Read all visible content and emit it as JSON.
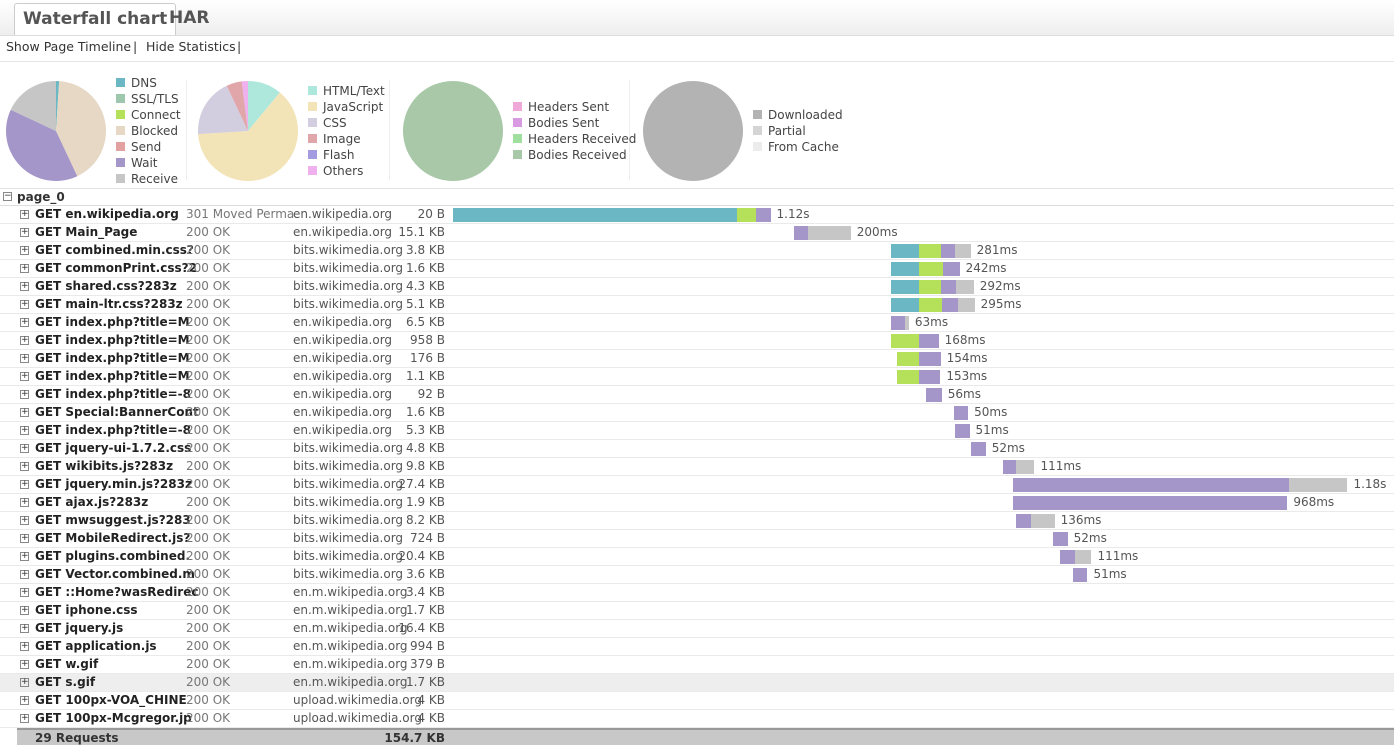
{
  "tabs": [
    "Waterfall chart",
    "HAR"
  ],
  "toolbar": {
    "links": [
      "Show Page Timeline",
      "Hide Statistics"
    ],
    "separator": "|"
  },
  "pies": [
    {
      "items": [
        {
          "label": "DNS",
          "value": 1,
          "color": "#6bb8c4"
        },
        {
          "label": "SSL/TLS",
          "value": 0,
          "color": "#9fc7ad"
        },
        {
          "label": "Connect",
          "value": 0,
          "color": "#b4e05a"
        },
        {
          "label": "Blocked",
          "value": 42,
          "color": "#e6d8c4"
        },
        {
          "label": "Send",
          "value": 0,
          "color": "#e3a1a1"
        },
        {
          "label": "Wait",
          "value": 39,
          "color": "#a496c8"
        },
        {
          "label": "Receive",
          "value": 18,
          "color": "#c6c6c6"
        }
      ]
    },
    {
      "items": [
        {
          "label": "HTML/Text",
          "value": 11,
          "color": "#aee8dc"
        },
        {
          "label": "JavaScript",
          "value": 63,
          "color": "#f3e4b8"
        },
        {
          "label": "CSS",
          "value": 19,
          "color": "#d3cde0"
        },
        {
          "label": "Image",
          "value": 5,
          "color": "#e0a6aa"
        },
        {
          "label": "Flash",
          "value": 0,
          "color": "#a39ce0"
        },
        {
          "label": "Others",
          "value": 2,
          "color": "#eeb1ee"
        }
      ]
    },
    {
      "items": [
        {
          "label": "Headers Sent",
          "value": 0,
          "color": "#f0a8d8"
        },
        {
          "label": "Bodies Sent",
          "value": 0,
          "color": "#d89ae0"
        },
        {
          "label": "Headers Received",
          "value": 0,
          "color": "#9fe09f"
        },
        {
          "label": "Bodies Received",
          "value": 100,
          "color": "#a8c8a8"
        }
      ]
    },
    {
      "items": [
        {
          "label": "Downloaded",
          "value": 100,
          "color": "#b3b3b3"
        },
        {
          "label": "Partial",
          "value": 0,
          "color": "#d4d4d4"
        },
        {
          "label": "From Cache",
          "value": 0,
          "color": "#ececec"
        }
      ]
    }
  ],
  "page": "page_0",
  "rows": [
    {
      "request": "GET en.wikipedia.org",
      "status": "301 Moved Perma",
      "domain": "en.wikipedia.org",
      "size": "20 B",
      "start": 0,
      "timings": [
        1000,
        0,
        70,
        0,
        0,
        50,
        0
      ],
      "time": "1.12s"
    },
    {
      "request": "GET Main_Page",
      "status": "200 OK",
      "domain": "en.wikipedia.org",
      "size": "15.1 KB",
      "start": 1203,
      "timings": [
        0,
        0,
        0,
        0,
        0,
        50,
        150
      ],
      "time": "200ms"
    },
    {
      "request": "GET combined.min.css?",
      "status": "200 OK",
      "domain": "bits.wikimedia.org",
      "size": "3.8 KB",
      "start": 1545,
      "timings": [
        100,
        0,
        75,
        0,
        0,
        50,
        56
      ],
      "time": "281ms"
    },
    {
      "request": "GET commonPrint.css?2",
      "status": "200 OK",
      "domain": "bits.wikimedia.org",
      "size": "1.6 KB",
      "start": 1545,
      "timings": [
        100,
        0,
        85,
        0,
        0,
        57,
        0
      ],
      "time": "242ms"
    },
    {
      "request": "GET shared.css?283z",
      "status": "200 OK",
      "domain": "bits.wikimedia.org",
      "size": "4.3 KB",
      "start": 1545,
      "timings": [
        100,
        0,
        75,
        0,
        0,
        55,
        62
      ],
      "time": "292ms"
    },
    {
      "request": "GET main-ltr.css?283z",
      "status": "200 OK",
      "domain": "bits.wikimedia.org",
      "size": "5.1 KB",
      "start": 1545,
      "timings": [
        100,
        0,
        80,
        0,
        0,
        55,
        60
      ],
      "time": "295ms"
    },
    {
      "request": "GET index.php?title=M",
      "status": "200 OK",
      "domain": "en.wikipedia.org",
      "size": "6.5 KB",
      "start": 1545,
      "timings": [
        0,
        0,
        0,
        0,
        0,
        50,
        13
      ],
      "time": "63ms"
    },
    {
      "request": "GET index.php?title=M",
      "status": "200 OK",
      "domain": "en.wikipedia.org",
      "size": "958 B",
      "start": 1545,
      "timings": [
        0,
        0,
        98,
        0,
        0,
        70,
        0
      ],
      "time": "168ms"
    },
    {
      "request": "GET index.php?title=M",
      "status": "200 OK",
      "domain": "en.wikipedia.org",
      "size": "176 B",
      "start": 1566,
      "timings": [
        0,
        0,
        78,
        0,
        0,
        76,
        0
      ],
      "time": "154ms"
    },
    {
      "request": "GET index.php?title=M",
      "status": "200 OK",
      "domain": "en.wikipedia.org",
      "size": "1.1 KB",
      "start": 1566,
      "timings": [
        0,
        0,
        77,
        0,
        0,
        76,
        0
      ],
      "time": "153ms"
    },
    {
      "request": "GET index.php?title=-8",
      "status": "200 OK",
      "domain": "en.wikipedia.org",
      "size": "92 B",
      "start": 1668,
      "timings": [
        0,
        0,
        0,
        0,
        0,
        56,
        0
      ],
      "time": "56ms"
    },
    {
      "request": "GET Special:BannerCont",
      "status": "200 OK",
      "domain": "en.wikipedia.org",
      "size": "1.6 KB",
      "start": 1767,
      "timings": [
        0,
        0,
        0,
        0,
        0,
        50,
        0
      ],
      "time": "50ms"
    },
    {
      "request": "GET index.php?title=-8",
      "status": "200 OK",
      "domain": "en.wikipedia.org",
      "size": "5.3 KB",
      "start": 1771,
      "timings": [
        0,
        0,
        0,
        0,
        0,
        51,
        0
      ],
      "time": "51ms"
    },
    {
      "request": "GET jquery-ui-1.7.2.css",
      "status": "200 OK",
      "domain": "bits.wikimedia.org",
      "size": "4.8 KB",
      "start": 1827,
      "timings": [
        0,
        0,
        0,
        0,
        0,
        52,
        0
      ],
      "time": "52ms"
    },
    {
      "request": "GET wikibits.js?283z",
      "status": "200 OK",
      "domain": "bits.wikimedia.org",
      "size": "9.8 KB",
      "start": 1940,
      "timings": [
        0,
        0,
        0,
        0,
        0,
        46,
        65
      ],
      "time": "111ms"
    },
    {
      "request": "GET jquery.min.js?283z",
      "status": "200 OK",
      "domain": "bits.wikimedia.org",
      "size": "27.4 KB",
      "start": 1975,
      "timings": [
        0,
        0,
        0,
        0,
        0,
        973,
        207
      ],
      "time": "1.18s"
    },
    {
      "request": "GET ajax.js?283z",
      "status": "200 OK",
      "domain": "bits.wikimedia.org",
      "size": "1.9 KB",
      "start": 1975,
      "timings": [
        0,
        0,
        0,
        0,
        0,
        968,
        0
      ],
      "time": "968ms"
    },
    {
      "request": "GET mwsuggest.js?283",
      "status": "200 OK",
      "domain": "bits.wikimedia.org",
      "size": "8.2 KB",
      "start": 1986,
      "timings": [
        0,
        0,
        0,
        0,
        0,
        53,
        83
      ],
      "time": "136ms"
    },
    {
      "request": "GET MobileRedirect.js?",
      "status": "200 OK",
      "domain": "bits.wikimedia.org",
      "size": "724 B",
      "start": 2116,
      "timings": [
        0,
        0,
        0,
        0,
        0,
        52,
        0
      ],
      "time": "52ms"
    },
    {
      "request": "GET plugins.combined.",
      "status": "200 OK",
      "domain": "bits.wikimedia.org",
      "size": "20.4 KB",
      "start": 2141,
      "timings": [
        0,
        0,
        0,
        0,
        0,
        53,
        58
      ],
      "time": "111ms"
    },
    {
      "request": "GET Vector.combined.m",
      "status": "200 OK",
      "domain": "bits.wikimedia.org",
      "size": "3.6 KB",
      "start": 2187,
      "timings": [
        0,
        0,
        0,
        0,
        0,
        51,
        0
      ],
      "time": "51ms"
    },
    {
      "request": "GET ::Home?wasRedirec",
      "status": "200 OK",
      "domain": "en.m.wikipedia.org",
      "size": "3.4 KB"
    },
    {
      "request": "GET iphone.css",
      "status": "200 OK",
      "domain": "en.m.wikipedia.org",
      "size": "1.7 KB"
    },
    {
      "request": "GET jquery.js",
      "status": "200 OK",
      "domain": "en.m.wikipedia.org",
      "size": "16.4 KB"
    },
    {
      "request": "GET application.js",
      "status": "200 OK",
      "domain": "en.m.wikipedia.org",
      "size": "994 B"
    },
    {
      "request": "GET w.gif",
      "status": "200 OK",
      "domain": "en.m.wikipedia.org",
      "size": "379 B"
    },
    {
      "request": "GET s.gif",
      "status": "200 OK",
      "domain": "en.m.wikipedia.org",
      "size": "1.7 KB"
    },
    {
      "request": "GET 100px-VOA_CHINE",
      "status": "200 OK",
      "domain": "upload.wikimedia.org",
      "size": "4 KB"
    },
    {
      "request": "GET 100px-Mcgregor.jp",
      "status": "200 OK",
      "domain": "upload.wikimedia.org",
      "size": "4 KB"
    }
  ],
  "summary": {
    "requests": "29 Requests",
    "size": "154.7 KB"
  }
}
